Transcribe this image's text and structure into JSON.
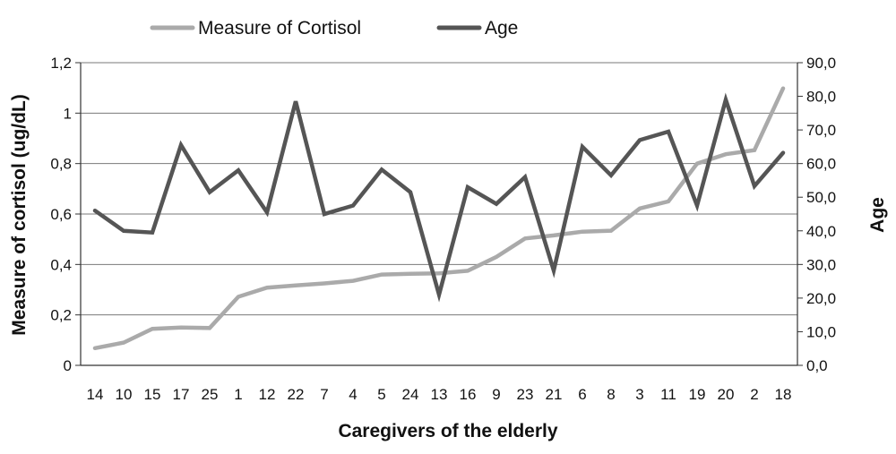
{
  "chart_data": {
    "type": "line",
    "xlabel": "Caregivers of the elderly",
    "ylabel": "Measure of cortisol (ug/dL)",
    "y2label": "Age",
    "categories": [
      "14",
      "10",
      "15",
      "17",
      "25",
      "1",
      "12",
      "22",
      "7",
      "4",
      "5",
      "24",
      "13",
      "16",
      "9",
      "23",
      "21",
      "6",
      "8",
      "3",
      "11",
      "19",
      "20",
      "2",
      "18"
    ],
    "ylim": [
      0,
      1.2
    ],
    "y2lim": [
      0,
      90
    ],
    "yticks": [
      "0",
      "0,2",
      "0,4",
      "0,6",
      "0,8",
      "1",
      "1,2"
    ],
    "y2ticks": [
      "0,0",
      "10,0",
      "20,0",
      "30,0",
      "40,0",
      "50,0",
      "60,0",
      "70,0",
      "80,0",
      "90,0"
    ],
    "grid": true,
    "legend_position": "top",
    "series": [
      {
        "name": "Measure of Cortisol",
        "axis": "left",
        "color": "#aaaaaa",
        "values": [
          0.068,
          0.09,
          0.145,
          0.15,
          0.148,
          0.272,
          0.308,
          0.317,
          0.325,
          0.335,
          0.36,
          0.363,
          0.365,
          0.375,
          0.43,
          0.503,
          0.515,
          0.53,
          0.534,
          0.622,
          0.65,
          0.8,
          0.837,
          0.853,
          1.098
        ]
      },
      {
        "name": "Age",
        "axis": "right",
        "color": "#555555",
        "values": [
          46,
          40,
          39.5,
          65.5,
          51.5,
          58,
          45.5,
          78.5,
          45,
          47.5,
          58.2,
          51.5,
          21,
          53,
          48,
          56,
          28.2,
          65,
          56.5,
          67,
          69.5,
          47.5,
          79,
          53.3,
          63.2
        ]
      }
    ]
  }
}
